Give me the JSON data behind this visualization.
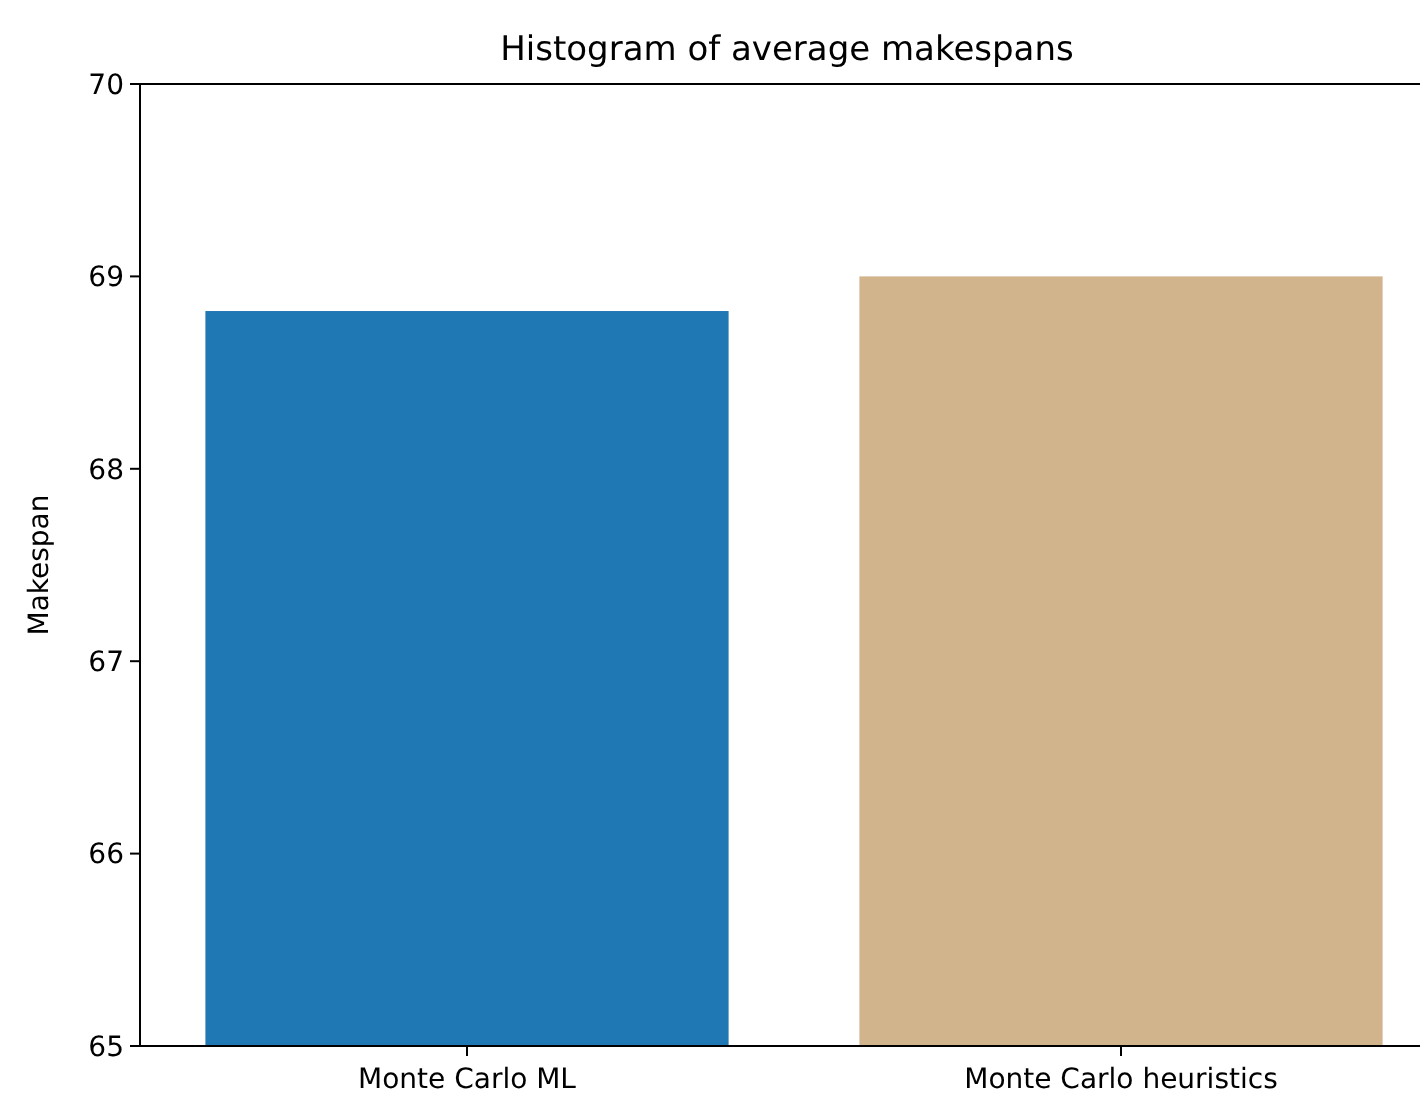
{
  "chart_data": {
    "type": "bar",
    "title": "Histogram of average makespans",
    "ylabel": "Makespan",
    "categories": [
      "Monte Carlo ML",
      "Monte Carlo heuristics"
    ],
    "values": [
      68.82,
      69.0
    ],
    "colors": [
      "#1f77b4",
      "#d2b48c"
    ],
    "ylim": [
      65,
      70
    ],
    "yticks": [
      65,
      66,
      67,
      68,
      69,
      70
    ],
    "grid": false
  }
}
